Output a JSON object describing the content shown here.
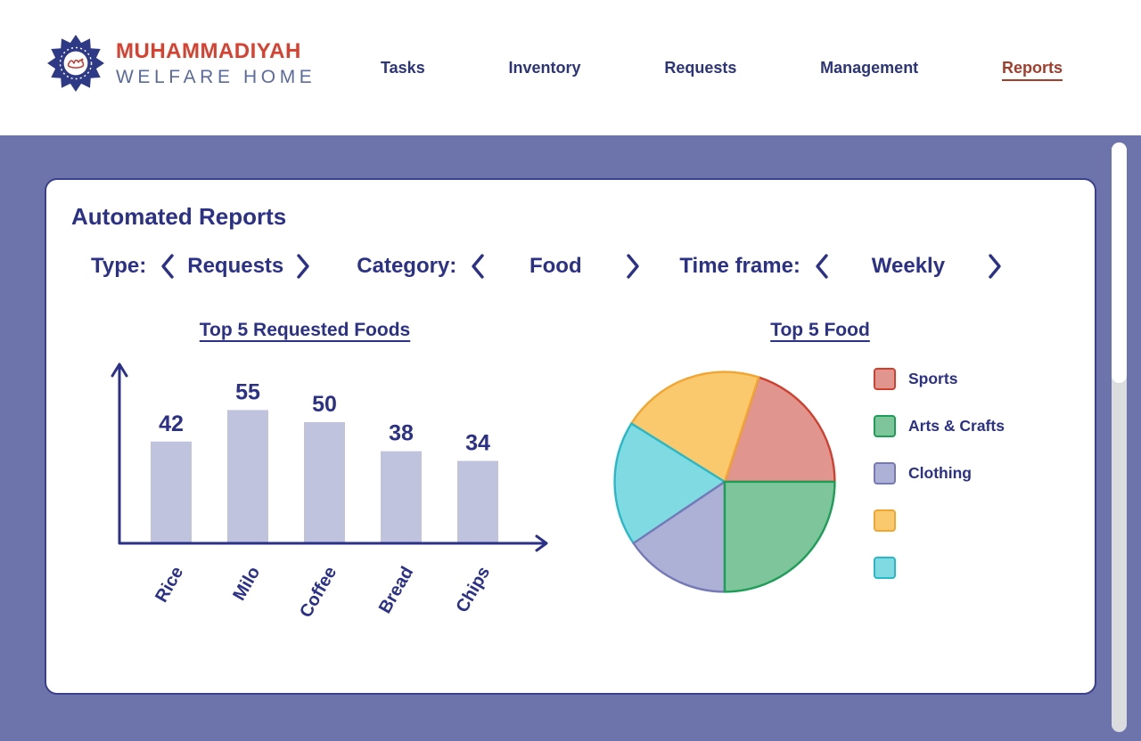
{
  "header": {
    "logo": {
      "line1": "MUHAMMADIYAH",
      "line2": "WELFARE HOME"
    },
    "nav": {
      "items": [
        {
          "label": "Tasks",
          "active": false
        },
        {
          "label": "Inventory",
          "active": false
        },
        {
          "label": "Requests",
          "active": false
        },
        {
          "label": "Management",
          "active": false
        },
        {
          "label": "Reports",
          "active": true
        }
      ]
    }
  },
  "report": {
    "title": "Automated Reports",
    "filters": [
      {
        "label": "Type:",
        "value": "Requests"
      },
      {
        "label": "Category:",
        "value": "Food"
      },
      {
        "label": "Time frame:",
        "value": "Weekly"
      }
    ]
  },
  "chart_data": [
    {
      "type": "bar",
      "title": "Top 5 Requested Foods",
      "categories": [
        "Rice",
        "Milo",
        "Coffee",
        "Bread",
        "Chips"
      ],
      "values": [
        42,
        55,
        50,
        38,
        34
      ],
      "value_labels": true,
      "ylim": [
        0,
        60
      ],
      "grid": false,
      "bar_color": "#bfc3de",
      "axis_color": "#2c3188",
      "label_color": "#2c3188"
    },
    {
      "type": "pie",
      "title": "Top 5 Food",
      "legend_position": "right",
      "slices": [
        {
          "id": "sports",
          "label": "Sports",
          "pct": 20,
          "start_deg": 0,
          "end_deg": 72,
          "fill": "#e0968f",
          "stroke": "#d1402f"
        },
        {
          "id": "unlabeled-yellow",
          "label": "",
          "pct": 21,
          "start_deg": 72,
          "end_deg": 148,
          "fill": "#fbc96d",
          "stroke": "#f2a52f"
        },
        {
          "id": "unlabeled-cyan",
          "label": "",
          "pct": 18,
          "start_deg": 148,
          "end_deg": 214,
          "fill": "#7fdbe1",
          "stroke": "#27b9c9"
        },
        {
          "id": "clothing",
          "label": "Clothing",
          "pct": 16,
          "start_deg": 214,
          "end_deg": 270,
          "fill": "#aeb1d6",
          "stroke": "#7579b7"
        },
        {
          "id": "arts-crafts",
          "label": "Arts & Crafts",
          "pct": 25,
          "start_deg": 270,
          "end_deg": 360,
          "fill": "#7fc59b",
          "stroke": "#1d9e57"
        }
      ],
      "legend_order": [
        "sports",
        "arts-crafts",
        "clothing",
        "unlabeled-yellow",
        "unlabeled-cyan"
      ]
    }
  ],
  "colors": {
    "page_background": "#6d74ac",
    "header_background": "#ffffff",
    "navy_text": "#2c3188",
    "active_nav": "#a33d2c",
    "card_border": "#3a3f8e",
    "logo_red": "#d8402f",
    "logo_blue": "#5b6b9e",
    "emblem_navy": "#2e3a85"
  }
}
